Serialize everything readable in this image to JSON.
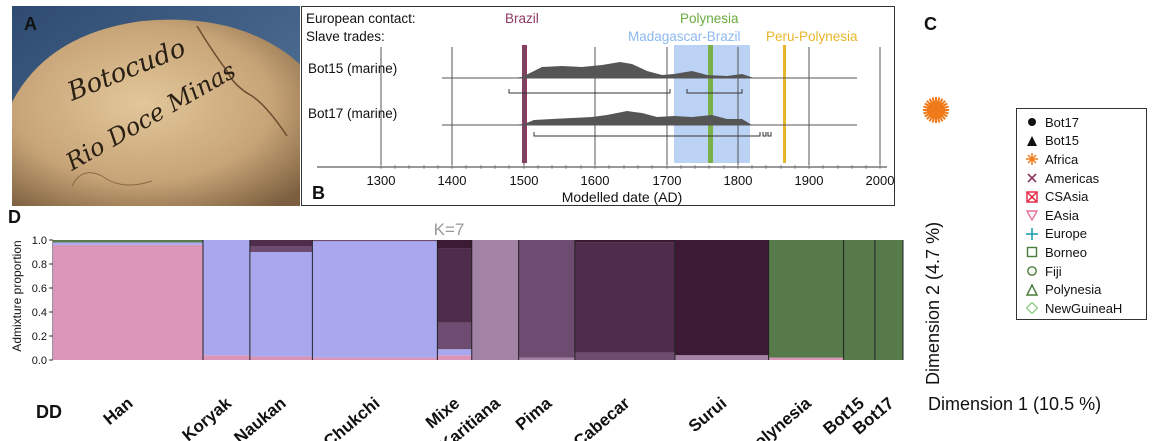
{
  "panels": {
    "a": "A",
    "b": "B",
    "c": "C",
    "d": "D"
  },
  "photo": {
    "inscription_1": "Botocudo",
    "inscription_2": "Rio Doce Minas",
    "colors": {
      "bg": "#3f5e86",
      "skull": "#c7a477",
      "ink": "#2a1f14"
    }
  },
  "panel_b": {
    "row_labels": [
      "European contact:",
      "Slave trades:"
    ],
    "events": [
      {
        "label": "Brazil",
        "color": "#8e3a63"
      },
      {
        "label": "Polynesia",
        "color": "#6aab3f"
      },
      {
        "label": "Madagascar-Brazil",
        "color": "#8cb8f0"
      },
      {
        "label": "Peru-Polynesia",
        "color": "#e8b62a"
      }
    ],
    "samples": [
      "Bot15 (marine)",
      "Bot17 (marine)"
    ],
    "xlabel": "Modelled date (AD)",
    "ticks": [
      "1300",
      "1400",
      "1500",
      "1600",
      "1700",
      "1800",
      "1900",
      "2000"
    ]
  },
  "chart_data": {
    "type": "bar",
    "stacked": true,
    "title": "K=7",
    "ylabel": "Admixture proportion",
    "ylim": [
      0,
      1.0
    ],
    "yticks": [
      "0.0",
      "0.2",
      "0.4",
      "0.6",
      "0.8",
      "1.0"
    ],
    "components": [
      {
        "color": "#d996b9"
      },
      {
        "color": "#a9a8ef"
      },
      {
        "color": "#a283a6"
      },
      {
        "color": "#6e4b71"
      },
      {
        "color": "#4f2c4c"
      },
      {
        "color": "#3c1a34"
      },
      {
        "color": "#567a4a"
      }
    ],
    "categories": [
      "Han",
      "Koryak",
      "Naukan",
      "Chukchi",
      "Mixe",
      "Karitiana",
      "Pima",
      "Cabecar",
      "Surui",
      "Polynesia",
      "Bot15",
      "Bot17"
    ],
    "group_proportions": [
      [
        0.96,
        0.02,
        0.0,
        0.0,
        0.0,
        0.0,
        0.02
      ],
      [
        0.04,
        0.96,
        0.0,
        0.0,
        0.0,
        0.0,
        0.0
      ],
      [
        0.03,
        0.87,
        0.0,
        0.05,
        0.05,
        0.0,
        0.0
      ],
      [
        0.02,
        0.97,
        0.0,
        0.01,
        0.0,
        0.0,
        0.0
      ],
      [
        0.04,
        0.05,
        0.0,
        0.22,
        0.62,
        0.07,
        0.0
      ],
      [
        0.0,
        0.0,
        1.0,
        0.0,
        0.0,
        0.0,
        0.0
      ],
      [
        0.0,
        0.0,
        0.02,
        0.98,
        0.0,
        0.0,
        0.0
      ],
      [
        0.0,
        0.0,
        0.0,
        0.06,
        0.92,
        0.02,
        0.0
      ],
      [
        0.0,
        0.0,
        0.04,
        0.0,
        0.0,
        0.96,
        0.0
      ],
      [
        0.02,
        0.0,
        0.0,
        0.0,
        0.0,
        0.0,
        0.98
      ],
      [
        0.0,
        0.0,
        0.0,
        0.0,
        0.0,
        0.0,
        1.0
      ],
      [
        0.0,
        0.0,
        0.0,
        0.0,
        0.0,
        0.0,
        1.0
      ]
    ]
  },
  "dd_label": "DD",
  "panel_c": {
    "dim2_label": "Dimension 2 (4.7 %)",
    "dim1_label": "Dimension 1 (10.5 %)",
    "legend": [
      {
        "label": "Bot17",
        "symbol": "filled-circle",
        "color": "#111111"
      },
      {
        "label": "Bot15",
        "symbol": "filled-triangle",
        "color": "#111111"
      },
      {
        "label": "Africa",
        "symbol": "asterisk",
        "color": "#f07a1a"
      },
      {
        "label": "Americas",
        "symbol": "cross",
        "color": "#8e3a63"
      },
      {
        "label": "CSAsia",
        "symbol": "boxed-x",
        "color": "#e0203a"
      },
      {
        "label": "EAsia",
        "symbol": "down-triangle",
        "color": "#e8709a"
      },
      {
        "label": "Europe",
        "symbol": "plus",
        "color": "#20a0b0"
      },
      {
        "label": "Borneo",
        "symbol": "square",
        "color": "#4a7a3a"
      },
      {
        "label": "Fiji",
        "symbol": "circle",
        "color": "#4a7a3a"
      },
      {
        "label": "Polynesia",
        "symbol": "triangle",
        "color": "#4a7a3a"
      },
      {
        "label": "NewGuineaH",
        "symbol": "diamond",
        "color": "#8fd08a"
      }
    ],
    "africa_cluster_color": "#f07a1a"
  }
}
